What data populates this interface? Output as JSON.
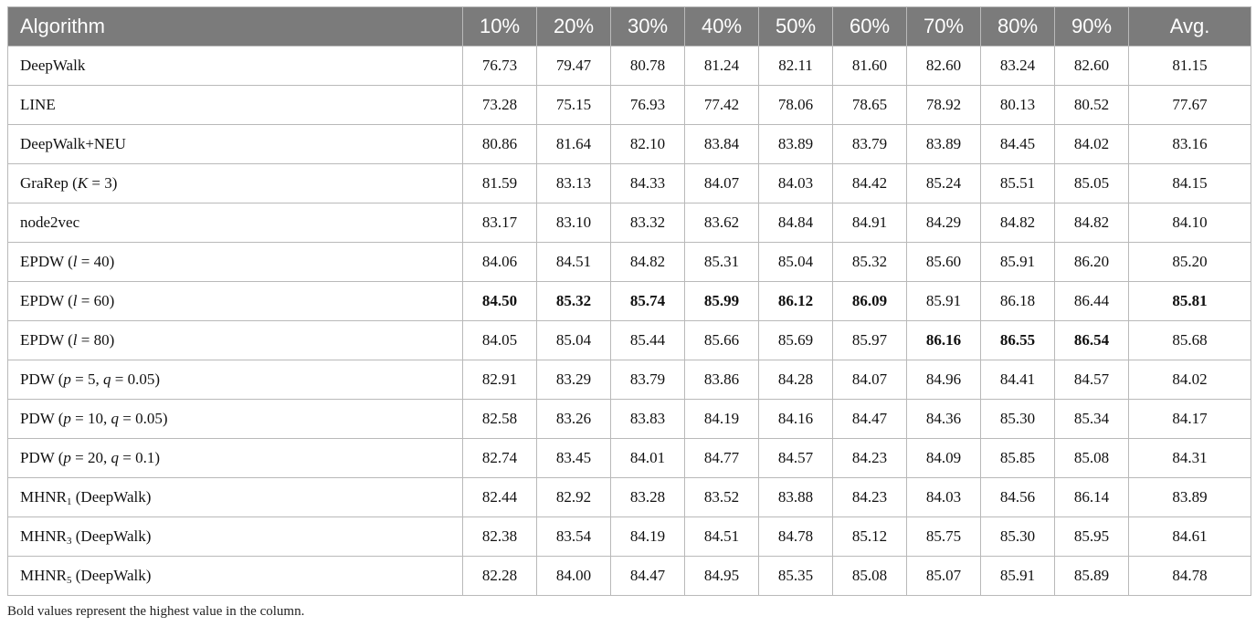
{
  "table": {
    "headers": [
      "Algorithm",
      "10%",
      "20%",
      "30%",
      "40%",
      "50%",
      "60%",
      "70%",
      "80%",
      "90%",
      "Avg."
    ],
    "rows": [
      {
        "algorithm": [
          {
            "t": "DeepWalk"
          }
        ],
        "values": [
          "76.73",
          "79.47",
          "80.78",
          "81.24",
          "82.11",
          "81.60",
          "82.60",
          "83.24",
          "82.60",
          "81.15"
        ],
        "bold": []
      },
      {
        "algorithm": [
          {
            "t": "LINE"
          }
        ],
        "values": [
          "73.28",
          "75.15",
          "76.93",
          "77.42",
          "78.06",
          "78.65",
          "78.92",
          "80.13",
          "80.52",
          "77.67"
        ],
        "bold": []
      },
      {
        "algorithm": [
          {
            "t": "DeepWalk+NEU"
          }
        ],
        "values": [
          "80.86",
          "81.64",
          "82.10",
          "83.84",
          "83.89",
          "83.79",
          "83.89",
          "84.45",
          "84.02",
          "83.16"
        ],
        "bold": []
      },
      {
        "algorithm": [
          {
            "t": "GraRep ("
          },
          {
            "t": "K",
            "i": true
          },
          {
            "t": " = 3)"
          }
        ],
        "values": [
          "81.59",
          "83.13",
          "84.33",
          "84.07",
          "84.03",
          "84.42",
          "85.24",
          "85.51",
          "85.05",
          "84.15"
        ],
        "bold": []
      },
      {
        "algorithm": [
          {
            "t": "node2vec"
          }
        ],
        "values": [
          "83.17",
          "83.10",
          "83.32",
          "83.62",
          "84.84",
          "84.91",
          "84.29",
          "84.82",
          "84.82",
          "84.10"
        ],
        "bold": []
      },
      {
        "algorithm": [
          {
            "t": "EPDW ("
          },
          {
            "t": "l",
            "i": true
          },
          {
            "t": " = 40)"
          }
        ],
        "values": [
          "84.06",
          "84.51",
          "84.82",
          "85.31",
          "85.04",
          "85.32",
          "85.60",
          "85.91",
          "86.20",
          "85.20"
        ],
        "bold": []
      },
      {
        "algorithm": [
          {
            "t": "EPDW ("
          },
          {
            "t": "l",
            "i": true
          },
          {
            "t": " = 60)"
          }
        ],
        "values": [
          "84.50",
          "85.32",
          "85.74",
          "85.99",
          "86.12",
          "86.09",
          "85.91",
          "86.18",
          "86.44",
          "85.81"
        ],
        "bold": [
          0,
          1,
          2,
          3,
          4,
          5,
          9
        ]
      },
      {
        "algorithm": [
          {
            "t": "EPDW ("
          },
          {
            "t": "l",
            "i": true
          },
          {
            "t": " = 80)"
          }
        ],
        "values": [
          "84.05",
          "85.04",
          "85.44",
          "85.66",
          "85.69",
          "85.97",
          "86.16",
          "86.55",
          "86.54",
          "85.68"
        ],
        "bold": [
          6,
          7,
          8
        ]
      },
      {
        "algorithm": [
          {
            "t": "PDW ("
          },
          {
            "t": "p",
            "i": true
          },
          {
            "t": " = 5, "
          },
          {
            "t": "q",
            "i": true
          },
          {
            "t": " = 0.05)"
          }
        ],
        "values": [
          "82.91",
          "83.29",
          "83.79",
          "83.86",
          "84.28",
          "84.07",
          "84.96",
          "84.41",
          "84.57",
          "84.02"
        ],
        "bold": []
      },
      {
        "algorithm": [
          {
            "t": "PDW ("
          },
          {
            "t": "p",
            "i": true
          },
          {
            "t": " = 10, "
          },
          {
            "t": "q",
            "i": true
          },
          {
            "t": " = 0.05)"
          }
        ],
        "values": [
          "82.58",
          "83.26",
          "83.83",
          "84.19",
          "84.16",
          "84.47",
          "84.36",
          "85.30",
          "85.34",
          "84.17"
        ],
        "bold": []
      },
      {
        "algorithm": [
          {
            "t": "PDW ("
          },
          {
            "t": "p",
            "i": true
          },
          {
            "t": " = 20, "
          },
          {
            "t": "q",
            "i": true
          },
          {
            "t": " = 0.1)"
          }
        ],
        "values": [
          "82.74",
          "83.45",
          "84.01",
          "84.77",
          "84.57",
          "84.23",
          "84.09",
          "85.85",
          "85.08",
          "84.31"
        ],
        "bold": []
      },
      {
        "algorithm": [
          {
            "t": "MHNR"
          },
          {
            "t": "1",
            "sub": true
          },
          {
            "t": " (DeepWalk)"
          }
        ],
        "values": [
          "82.44",
          "82.92",
          "83.28",
          "83.52",
          "83.88",
          "84.23",
          "84.03",
          "84.56",
          "86.14",
          "83.89"
        ],
        "bold": []
      },
      {
        "algorithm": [
          {
            "t": "MHNR"
          },
          {
            "t": "3",
            "sub": true
          },
          {
            "t": " (DeepWalk)"
          }
        ],
        "values": [
          "82.38",
          "83.54",
          "84.19",
          "84.51",
          "84.78",
          "85.12",
          "85.75",
          "85.30",
          "85.95",
          "84.61"
        ],
        "bold": []
      },
      {
        "algorithm": [
          {
            "t": "MHNR"
          },
          {
            "t": "5",
            "sub": true
          },
          {
            "t": " (DeepWalk)"
          }
        ],
        "values": [
          "82.28",
          "84.00",
          "84.47",
          "84.95",
          "85.35",
          "85.08",
          "85.07",
          "85.91",
          "85.89",
          "84.78"
        ],
        "bold": []
      }
    ]
  },
  "footnote": "Bold values represent the highest value in the column."
}
